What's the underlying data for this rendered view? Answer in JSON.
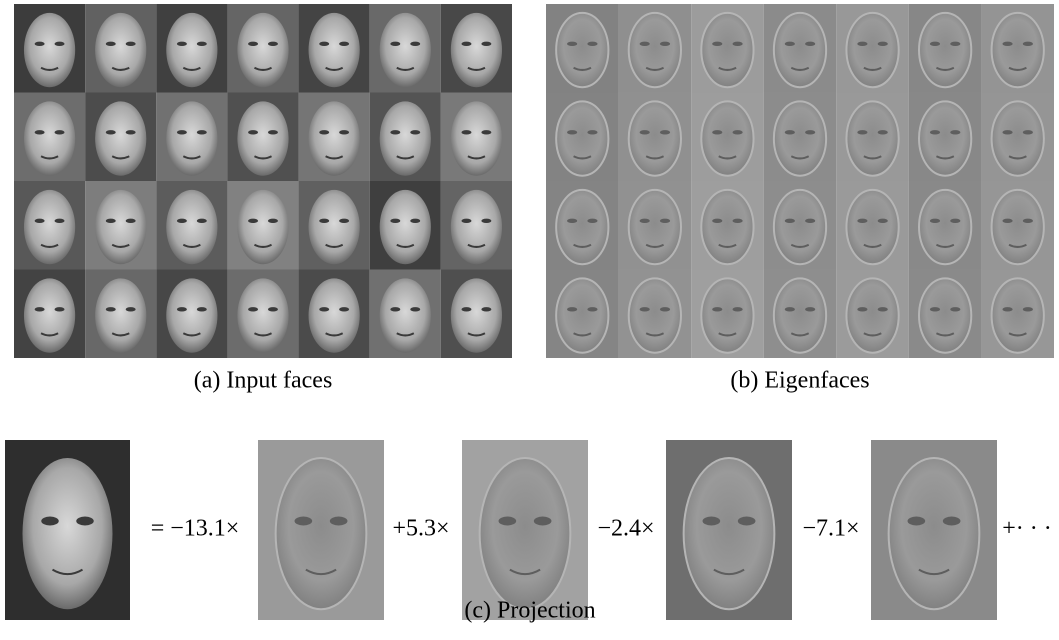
{
  "figure": {
    "panels": [
      {
        "caption": "(a) Input faces"
      },
      {
        "caption": "(b) Eigenfaces"
      }
    ],
    "projection": {
      "terms": [
        "= −13.1×",
        "+5.3×",
        "−2.4×",
        "−7.1×",
        "+· · ·"
      ],
      "caption": "(c) Projection"
    }
  }
}
